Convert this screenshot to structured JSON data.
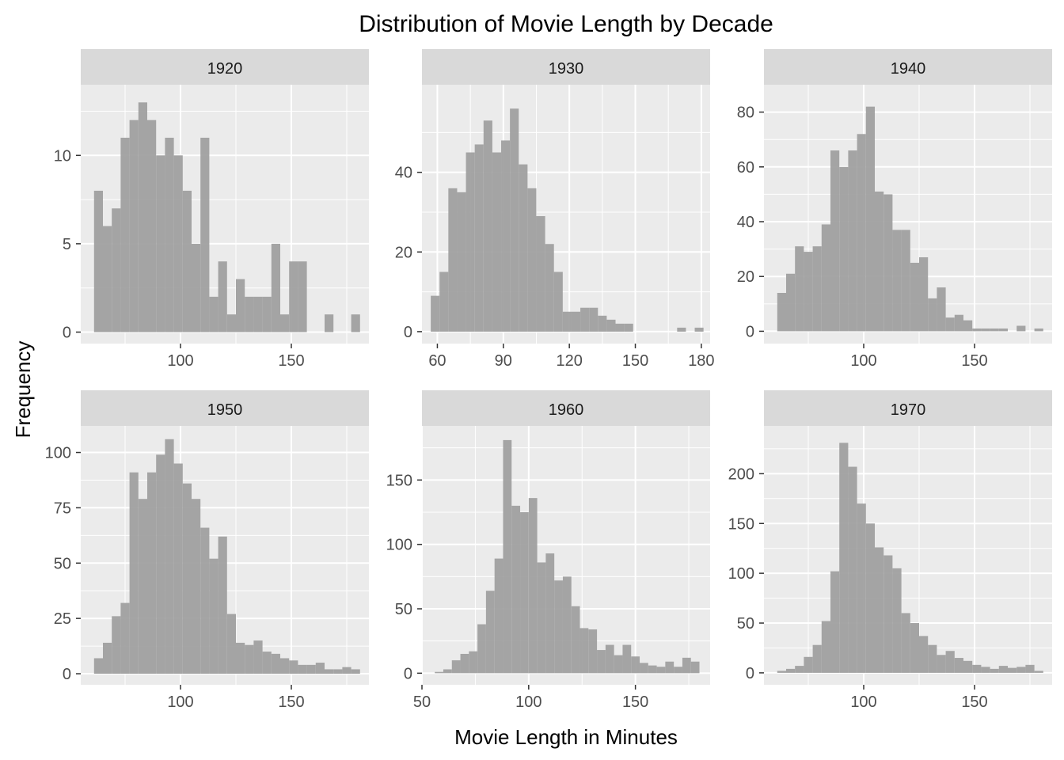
{
  "chart_data": {
    "type": "bar",
    "chart_kind": "faceted histogram",
    "title": "Distribution of Movie Length by Decade",
    "xlabel": "Movie Length in Minutes",
    "ylabel": "Frequency",
    "bin_width": 4,
    "bar_color": "#a0a0a0",
    "panel_background": "#ebebeb",
    "strip_background": "#d9d9d9",
    "grid": true,
    "legend": "none",
    "facets": [
      {
        "label": "1920",
        "xlim": [
          55,
          185
        ],
        "ylim": [
          -0.65,
          14
        ],
        "x_ticks": [
          100,
          150
        ],
        "y_ticks": [
          0,
          5,
          10
        ],
        "bin_starts": [
          61,
          65,
          69,
          73,
          77,
          81,
          85,
          89,
          93,
          97,
          101,
          105,
          109,
          113,
          117,
          121,
          125,
          129,
          133,
          137,
          141,
          145,
          149,
          153,
          157,
          161,
          165,
          169,
          173,
          177
        ],
        "counts": [
          8,
          6,
          7,
          11,
          12,
          13,
          12,
          10,
          11,
          10,
          8,
          5,
          11,
          2,
          4,
          1,
          3,
          2,
          2,
          2,
          5,
          1,
          4,
          4,
          0,
          0,
          1,
          0,
          0,
          1
        ]
      },
      {
        "label": "1930",
        "xlim": [
          53,
          184
        ],
        "ylim": [
          -3,
          62
        ],
        "x_ticks": [
          60,
          90,
          120,
          150,
          180
        ],
        "y_ticks": [
          0,
          20,
          40
        ],
        "bin_starts": [
          57,
          61,
          65,
          69,
          73,
          77,
          81,
          85,
          89,
          93,
          97,
          101,
          105,
          109,
          113,
          117,
          121,
          125,
          129,
          133,
          137,
          141,
          145,
          149,
          153,
          157,
          161,
          165,
          169,
          173,
          177
        ],
        "counts": [
          9,
          15,
          36,
          35,
          45,
          47,
          53,
          45,
          48,
          56,
          42,
          36,
          29,
          22,
          15,
          5,
          5,
          6,
          6,
          4,
          3,
          2,
          2,
          0,
          0,
          0,
          0,
          0,
          1,
          0,
          1
        ]
      },
      {
        "label": "1940",
        "xlim": [
          55,
          185
        ],
        "ylim": [
          -4.5,
          90
        ],
        "x_ticks": [
          100,
          150
        ],
        "y_ticks": [
          0,
          20,
          40,
          60,
          80
        ],
        "bin_starts": [
          61,
          65,
          69,
          73,
          77,
          81,
          85,
          89,
          93,
          97,
          101,
          105,
          109,
          113,
          117,
          121,
          125,
          129,
          133,
          137,
          141,
          145,
          149,
          153,
          157,
          161,
          165,
          169,
          173,
          177
        ],
        "counts": [
          14,
          21,
          31,
          29,
          31,
          39,
          66,
          60,
          66,
          72,
          82,
          51,
          50,
          37,
          37,
          25,
          27,
          12,
          16,
          5,
          6,
          4,
          1,
          1,
          1,
          1,
          0,
          2,
          0,
          1
        ]
      },
      {
        "label": "1950",
        "xlim": [
          55,
          185
        ],
        "ylim": [
          -5,
          112
        ],
        "x_ticks": [
          100,
          150
        ],
        "y_ticks": [
          0,
          25,
          50,
          75,
          100
        ],
        "bin_starts": [
          61,
          65,
          69,
          73,
          77,
          81,
          85,
          89,
          93,
          97,
          101,
          105,
          109,
          113,
          117,
          121,
          125,
          129,
          133,
          137,
          141,
          145,
          149,
          153,
          157,
          161,
          165,
          169,
          173,
          177
        ],
        "counts": [
          7,
          14,
          26,
          32,
          91,
          79,
          91,
          99,
          106,
          95,
          86,
          79,
          66,
          52,
          62,
          27,
          14,
          13,
          15,
          10,
          9,
          7,
          6,
          4,
          4,
          5,
          2,
          2,
          3,
          2
        ]
      },
      {
        "label": "1960",
        "xlim": [
          50,
          185
        ],
        "ylim": [
          -9,
          192
        ],
        "x_ticks": [
          50,
          100,
          150
        ],
        "y_ticks": [
          0,
          50,
          100,
          150
        ],
        "bin_starts": [
          56,
          60,
          64,
          68,
          72,
          76,
          80,
          84,
          88,
          92,
          96,
          100,
          104,
          108,
          112,
          116,
          120,
          124,
          128,
          132,
          136,
          140,
          144,
          148,
          152,
          156,
          160,
          164,
          168,
          172,
          176
        ],
        "counts": [
          1,
          3,
          10,
          15,
          17,
          38,
          64,
          89,
          181,
          130,
          125,
          136,
          86,
          93,
          72,
          75,
          52,
          35,
          34,
          18,
          22,
          14,
          22,
          13,
          8,
          6,
          5,
          9,
          5,
          12,
          9
        ]
      },
      {
        "label": "1970",
        "xlim": [
          55,
          185
        ],
        "ylim": [
          -12,
          248
        ],
        "x_ticks": [
          100,
          150
        ],
        "y_ticks": [
          0,
          50,
          100,
          150,
          200
        ],
        "bin_starts": [
          61,
          65,
          69,
          73,
          77,
          81,
          85,
          89,
          93,
          97,
          101,
          105,
          109,
          113,
          117,
          121,
          125,
          129,
          133,
          137,
          141,
          145,
          149,
          153,
          157,
          161,
          165,
          169,
          173,
          177
        ],
        "counts": [
          2,
          4,
          7,
          16,
          28,
          52,
          102,
          231,
          207,
          170,
          150,
          126,
          118,
          105,
          60,
          50,
          37,
          28,
          18,
          22,
          15,
          12,
          8,
          6,
          4,
          7,
          5,
          6,
          8,
          2
        ]
      }
    ]
  }
}
